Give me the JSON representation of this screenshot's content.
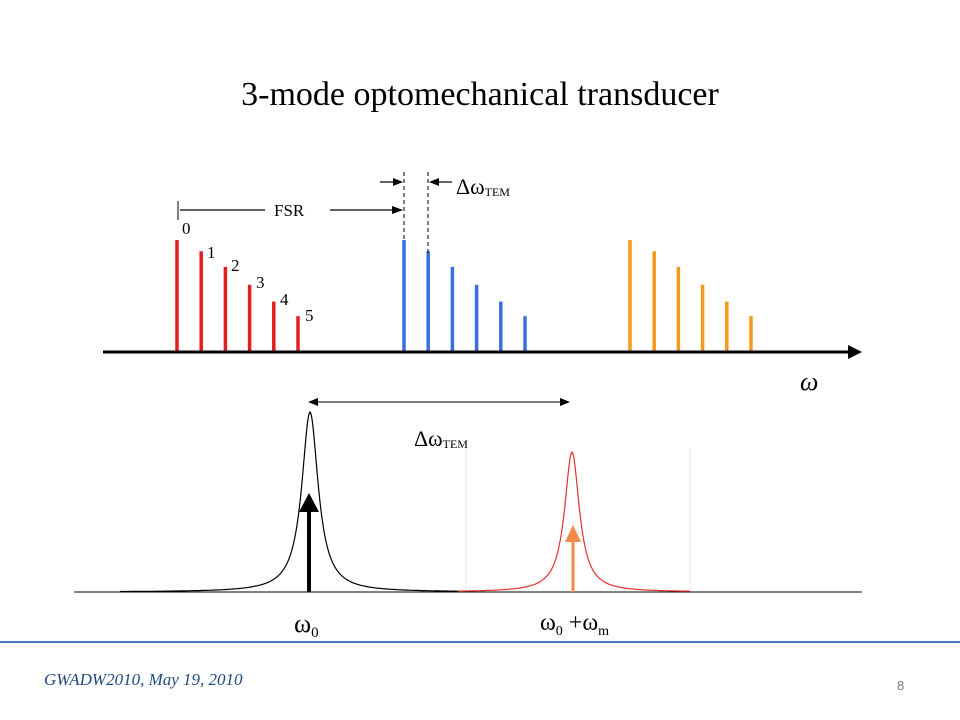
{
  "slide": {
    "title": "3-mode optomechanical transducer",
    "footer": "GWADW2010, May 19, 2010",
    "page_number": "8"
  },
  "top_diagram": {
    "fsr_label": "FSR",
    "delta_omega_symbol": "Δω",
    "delta_omega_subscript": "TEM",
    "axis_label": "ω",
    "mode_numbers": [
      "0",
      "1",
      "2",
      "3",
      "4",
      "5"
    ],
    "groups": [
      {
        "color": "#e41e1e",
        "heights": [
          1.0,
          0.9,
          0.76,
          0.6,
          0.45,
          0.32
        ]
      },
      {
        "color": "#3a6fe0",
        "heights": [
          1.0,
          0.9,
          0.76,
          0.6,
          0.45,
          0.32
        ]
      },
      {
        "color": "#f39a1a",
        "heights": [
          1.0,
          0.9,
          0.76,
          0.6,
          0.45,
          0.32
        ]
      }
    ]
  },
  "bottom_diagram": {
    "delta_omega_symbol": "Δω",
    "delta_omega_subscript": "TEM",
    "left_label_main": "ω",
    "left_label_sub": "0",
    "right_label_a_main": "ω",
    "right_label_a_sub": "0",
    "right_label_plus": " +",
    "right_label_b_main": "ω",
    "right_label_b_sub": "m",
    "left_peak_color": "#000000",
    "right_peak_color": "#e53030",
    "left_arrow_color": "#000000",
    "right_arrow_color": "#f0894a"
  },
  "colors": {
    "footer_rule": "#4a7ebb",
    "footer_text": "#1f497d"
  }
}
